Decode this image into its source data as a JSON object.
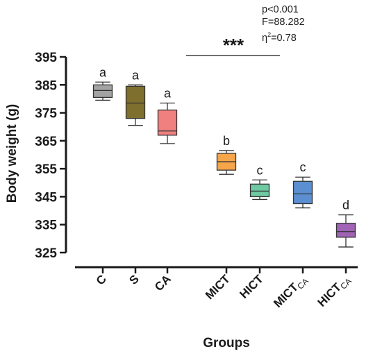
{
  "chart_data": {
    "type": "boxplot",
    "xlabel": "Groups",
    "ylabel": "Body weight  (g)",
    "ylim": [
      325,
      395
    ],
    "yticks": [
      325,
      335,
      345,
      355,
      365,
      375,
      385,
      395
    ],
    "categories": [
      {
        "base": "C",
        "sub": ""
      },
      {
        "base": "S",
        "sub": ""
      },
      {
        "base": "CA",
        "sub": ""
      },
      {
        "base": "MICT",
        "sub": ""
      },
      {
        "base": "HICT",
        "sub": ""
      },
      {
        "base": "MICT",
        "sub": "CA"
      },
      {
        "base": "HICT",
        "sub": "CA"
      }
    ],
    "boxes": [
      {
        "min": 379.5,
        "q1": 380.5,
        "median": 383,
        "q3": 385,
        "max": 386,
        "color": "#a3a3a3",
        "letter": "a"
      },
      {
        "min": 370.5,
        "q1": 373,
        "median": 378.5,
        "q3": 384.5,
        "max": 385,
        "color": "#7f6f2e",
        "letter": "a"
      },
      {
        "min": 364,
        "q1": 367,
        "median": 368.5,
        "q3": 376,
        "max": 378.5,
        "color": "#f08080",
        "letter": "a"
      },
      {
        "min": 353,
        "q1": 354.5,
        "median": 357.5,
        "q3": 360.5,
        "max": 361.5,
        "color": "#f5a54a",
        "letter": "b"
      },
      {
        "min": 344,
        "q1": 345,
        "median": 347,
        "q3": 349.5,
        "max": 351,
        "color": "#6fc9a2",
        "letter": "c"
      },
      {
        "min": 341,
        "q1": 342.5,
        "median": 346,
        "q3": 350.5,
        "max": 352,
        "color": "#5b8fd2",
        "letter": "c"
      },
      {
        "min": 327,
        "q1": 330.5,
        "median": 332.5,
        "q3": 335.5,
        "max": 338.5,
        "color": "#a063b6",
        "letter": "d"
      }
    ],
    "significance": "***",
    "stats": {
      "p": "p<0.001",
      "F": "F=88.282",
      "eta_base": "η",
      "eta_exp": "2",
      "eta_value": "=0.78"
    }
  }
}
